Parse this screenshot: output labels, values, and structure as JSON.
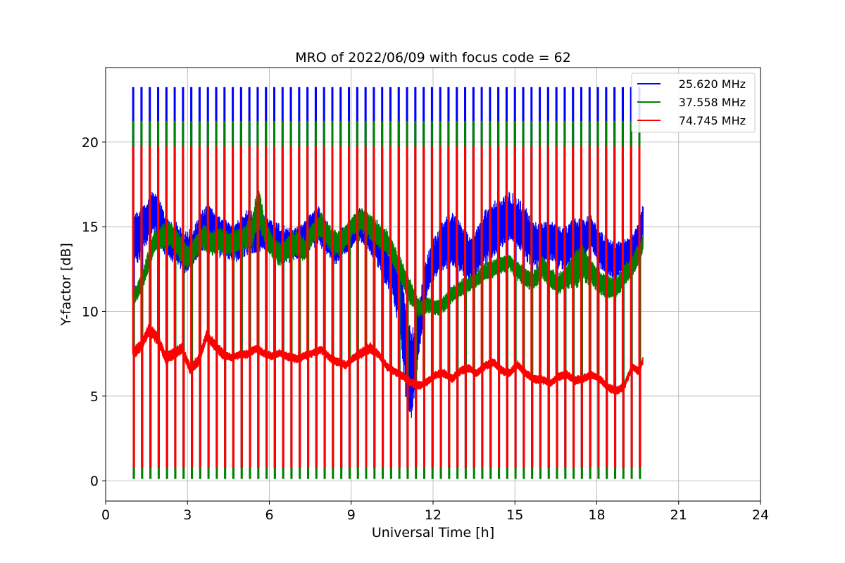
{
  "chart_data": {
    "type": "line",
    "title": "MRO of 2022/06/09 with focus code = 62",
    "xlabel": "Universal Time [h]",
    "ylabel": "Y-factor [dB]",
    "xlim": [
      0,
      24
    ],
    "ylim": [
      -1.2,
      24.4
    ],
    "xticks": [
      0,
      3,
      6,
      9,
      12,
      15,
      18,
      21,
      24
    ],
    "yticks": [
      0,
      5,
      10,
      15,
      20
    ],
    "grid": true,
    "legend_position": "top-right",
    "time_range": [
      1.0,
      19.7
    ],
    "calibration_spikes": {
      "count": 62,
      "start": 1.0,
      "end": 19.55
    },
    "series": [
      {
        "name": "25.620 MHz",
        "color": "#0000ff",
        "spike_peak": 23.2,
        "spike_floor": 0.8,
        "x": [
          1.0,
          1.2,
          1.5,
          1.7,
          1.9,
          2.1,
          2.3,
          2.6,
          2.9,
          3.2,
          3.5,
          3.8,
          4.0,
          4.3,
          4.6,
          4.9,
          5.2,
          5.4,
          5.7,
          6.0,
          6.3,
          6.6,
          6.9,
          7.2,
          7.5,
          7.8,
          8.1,
          8.4,
          8.7,
          9.0,
          9.3,
          9.6,
          9.9,
          10.2,
          10.5,
          10.8,
          11.0,
          11.2,
          11.5,
          11.8,
          12.1,
          12.4,
          12.7,
          13.0,
          13.3,
          13.6,
          13.9,
          14.2,
          14.5,
          14.8,
          15.1,
          15.4,
          15.7,
          16.0,
          16.3,
          16.6,
          16.9,
          17.2,
          17.5,
          17.8,
          18.1,
          18.4,
          18.7,
          19.0,
          19.3,
          19.55,
          19.7
        ],
        "mean": [
          14.3,
          14.5,
          15.5,
          16.2,
          16.0,
          15.0,
          14.3,
          14.0,
          13.2,
          13.5,
          14.5,
          15.0,
          14.6,
          14.5,
          14.3,
          14.5,
          14.8,
          14.6,
          14.5,
          14.2,
          14.0,
          13.8,
          14.0,
          14.3,
          15.0,
          15.3,
          14.5,
          13.5,
          14.0,
          14.2,
          15.0,
          14.5,
          14.0,
          13.0,
          12.5,
          11.0,
          8.0,
          6.0,
          9.0,
          12.0,
          13.0,
          13.8,
          14.3,
          14.0,
          13.5,
          13.8,
          14.5,
          14.8,
          15.0,
          15.2,
          15.0,
          14.5,
          14.0,
          14.2,
          14.5,
          14.0,
          13.8,
          14.3,
          14.0,
          14.5,
          13.5,
          13.2,
          13.0,
          13.5,
          13.8,
          14.5,
          15.5
        ],
        "amp": [
          1.8,
          1.8,
          1.6,
          1.7,
          1.7,
          1.5,
          1.4,
          1.4,
          1.5,
          1.5,
          1.5,
          1.5,
          1.4,
          1.5,
          1.5,
          1.5,
          1.6,
          1.5,
          1.3,
          1.3,
          1.3,
          1.3,
          1.2,
          1.2,
          1.4,
          1.4,
          1.2,
          1.0,
          1.0,
          1.0,
          1.2,
          1.0,
          1.2,
          1.3,
          1.5,
          2.5,
          3.5,
          3.0,
          2.0,
          1.5,
          1.6,
          1.8,
          1.8,
          1.8,
          1.8,
          1.8,
          1.9,
          1.9,
          1.9,
          1.9,
          1.8,
          1.8,
          1.7,
          1.6,
          1.6,
          1.5,
          1.5,
          1.4,
          1.4,
          1.4,
          1.3,
          1.3,
          1.3,
          1.3,
          1.2,
          1.2,
          1.2
        ]
      },
      {
        "name": "37.558 MHz",
        "color": "#008000",
        "spike_peak": 21.2,
        "spike_floor": 0.15,
        "x": [
          1.0,
          1.3,
          1.5,
          1.8,
          2.1,
          2.4,
          2.7,
          3.0,
          3.3,
          3.6,
          3.9,
          4.2,
          4.5,
          4.8,
          5.1,
          5.4,
          5.6,
          5.8,
          6.1,
          6.4,
          6.7,
          7.0,
          7.3,
          7.6,
          7.9,
          8.2,
          8.5,
          8.8,
          9.1,
          9.4,
          9.7,
          10.0,
          10.3,
          10.6,
          10.9,
          11.2,
          11.5,
          11.8,
          12.1,
          12.4,
          12.7,
          13.0,
          13.3,
          13.6,
          13.9,
          14.2,
          14.5,
          14.8,
          15.1,
          15.4,
          15.7,
          16.0,
          16.3,
          16.6,
          16.9,
          17.2,
          17.5,
          17.8,
          18.1,
          18.4,
          18.7,
          19.0,
          19.3,
          19.6,
          19.7
        ],
        "mean": [
          10.8,
          11.5,
          12.5,
          14.0,
          14.3,
          14.5,
          13.8,
          13.3,
          14.0,
          14.5,
          14.0,
          14.2,
          13.8,
          14.0,
          14.3,
          14.8,
          16.5,
          15.0,
          14.0,
          13.5,
          13.8,
          14.0,
          13.5,
          14.5,
          15.0,
          14.3,
          14.0,
          14.5,
          15.3,
          15.5,
          15.0,
          14.5,
          14.0,
          13.0,
          12.0,
          11.0,
          10.2,
          10.5,
          10.3,
          10.5,
          11.0,
          11.3,
          11.5,
          11.8,
          12.3,
          12.5,
          12.8,
          13.0,
          12.5,
          12.0,
          11.8,
          12.5,
          11.8,
          11.5,
          12.0,
          12.5,
          13.0,
          12.5,
          11.8,
          11.5,
          11.3,
          12.0,
          12.5,
          13.5,
          14.0
        ],
        "amp": [
          0.5,
          0.7,
          0.8,
          0.9,
          0.9,
          0.9,
          0.9,
          0.9,
          0.9,
          0.9,
          0.9,
          0.9,
          0.9,
          0.9,
          0.9,
          1.2,
          1.6,
          1.0,
          0.9,
          0.9,
          0.9,
          0.9,
          0.9,
          0.9,
          0.9,
          0.9,
          0.9,
          0.9,
          0.9,
          0.9,
          0.9,
          0.9,
          0.9,
          0.9,
          0.9,
          0.9,
          0.6,
          0.6,
          0.6,
          0.6,
          0.6,
          0.6,
          0.6,
          0.6,
          0.6,
          0.6,
          0.6,
          0.6,
          0.7,
          0.7,
          0.7,
          0.8,
          0.8,
          0.8,
          0.9,
          1.3,
          1.4,
          1.0,
          0.8,
          0.8,
          0.7,
          0.8,
          0.8,
          0.8,
          0.5
        ]
      },
      {
        "name": "74.745 MHz",
        "color": "#ff0000",
        "spike_peak": 19.7,
        "spike_floor": 0.8,
        "x": [
          1.0,
          1.3,
          1.6,
          1.9,
          2.2,
          2.5,
          2.8,
          3.1,
          3.4,
          3.7,
          4.0,
          4.3,
          4.6,
          4.9,
          5.2,
          5.5,
          5.8,
          6.1,
          6.4,
          6.7,
          7.0,
          7.3,
          7.6,
          7.9,
          8.2,
          8.5,
          8.8,
          9.1,
          9.4,
          9.7,
          10.0,
          10.3,
          10.6,
          10.9,
          11.2,
          11.5,
          11.8,
          12.1,
          12.4,
          12.7,
          13.0,
          13.3,
          13.6,
          13.9,
          14.2,
          14.5,
          14.8,
          15.1,
          15.4,
          15.7,
          16.0,
          16.3,
          16.6,
          16.9,
          17.2,
          17.5,
          17.8,
          18.1,
          18.4,
          18.7,
          19.0,
          19.3,
          19.55,
          19.7
        ],
        "mean": [
          7.5,
          8.0,
          9.0,
          8.5,
          7.3,
          7.5,
          7.8,
          6.5,
          7.0,
          8.5,
          8.0,
          7.5,
          7.3,
          7.5,
          7.5,
          7.8,
          7.5,
          7.3,
          7.5,
          7.3,
          7.2,
          7.4,
          7.6,
          7.8,
          7.3,
          7.0,
          6.8,
          7.2,
          7.5,
          7.8,
          7.5,
          6.8,
          6.5,
          6.2,
          5.8,
          5.6,
          5.8,
          6.2,
          6.3,
          6.0,
          6.5,
          6.7,
          6.4,
          6.8,
          7.0,
          6.5,
          6.3,
          6.8,
          6.3,
          6.0,
          6.0,
          5.8,
          6.2,
          6.3,
          5.9,
          6.0,
          6.2,
          6.0,
          5.5,
          5.3,
          5.6,
          6.8,
          6.5,
          7.2
        ],
        "amp": [
          0.4,
          0.4,
          0.5,
          0.5,
          0.4,
          0.4,
          0.4,
          0.4,
          0.5,
          0.4,
          0.4,
          0.4,
          0.3,
          0.3,
          0.3,
          0.3,
          0.3,
          0.3,
          0.3,
          0.3,
          0.3,
          0.3,
          0.3,
          0.3,
          0.3,
          0.3,
          0.3,
          0.3,
          0.4,
          0.4,
          0.3,
          0.3,
          0.3,
          0.3,
          0.3,
          0.3,
          0.3,
          0.3,
          0.3,
          0.3,
          0.3,
          0.3,
          0.3,
          0.3,
          0.3,
          0.3,
          0.3,
          0.3,
          0.3,
          0.3,
          0.3,
          0.3,
          0.3,
          0.3,
          0.3,
          0.3,
          0.3,
          0.3,
          0.3,
          0.3,
          0.3,
          0.3,
          0.3,
          0.3
        ]
      }
    ]
  }
}
